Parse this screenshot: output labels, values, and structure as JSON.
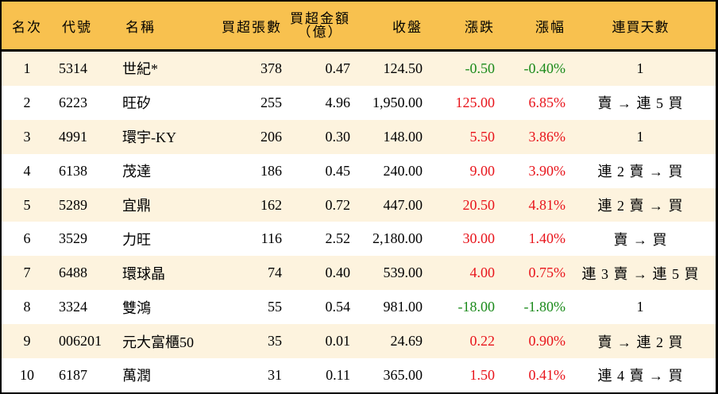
{
  "colors": {
    "header_bg": "#f8c14f",
    "row_odd_bg": "#fdf3de",
    "row_even_bg": "#ffffff",
    "up": "#e8141b",
    "down": "#1a8a1a",
    "border": "#000000"
  },
  "header": {
    "rank": "名次",
    "code": "代號",
    "name": "名稱",
    "net_buy_lots": "買超張數",
    "net_buy_amount_line1": "買超金額",
    "net_buy_amount_line2": "（億）",
    "close": "收盤",
    "change": "漲跌",
    "change_pct": "漲幅",
    "consecutive_days": "連買天數"
  },
  "rows": [
    {
      "rank": "1",
      "code": "5314",
      "name": "世紀*",
      "net_buy_lots": "378",
      "net_buy_amount": "0.47",
      "close": "124.50",
      "change": "-0.50",
      "change_pct": "-0.40%",
      "direction": "down",
      "consecutive_days": "1"
    },
    {
      "rank": "2",
      "code": "6223",
      "name": "旺矽",
      "net_buy_lots": "255",
      "net_buy_amount": "4.96",
      "close": "1,950.00",
      "change": "125.00",
      "change_pct": "6.85%",
      "direction": "up",
      "consecutive_days": "賣 → 連 5 買"
    },
    {
      "rank": "3",
      "code": "4991",
      "name": "環宇-KY",
      "net_buy_lots": "206",
      "net_buy_amount": "0.30",
      "close": "148.00",
      "change": "5.50",
      "change_pct": "3.86%",
      "direction": "up",
      "consecutive_days": "1"
    },
    {
      "rank": "4",
      "code": "6138",
      "name": "茂達",
      "net_buy_lots": "186",
      "net_buy_amount": "0.45",
      "close": "240.00",
      "change": "9.00",
      "change_pct": "3.90%",
      "direction": "up",
      "consecutive_days": "連 2 賣 → 買"
    },
    {
      "rank": "5",
      "code": "5289",
      "name": "宜鼎",
      "net_buy_lots": "162",
      "net_buy_amount": "0.72",
      "close": "447.00",
      "change": "20.50",
      "change_pct": "4.81%",
      "direction": "up",
      "consecutive_days": "連 2 賣 → 買"
    },
    {
      "rank": "6",
      "code": "3529",
      "name": "力旺",
      "net_buy_lots": "116",
      "net_buy_amount": "2.52",
      "close": "2,180.00",
      "change": "30.00",
      "change_pct": "1.40%",
      "direction": "up",
      "consecutive_days": "賣 → 買"
    },
    {
      "rank": "7",
      "code": "6488",
      "name": "環球晶",
      "net_buy_lots": "74",
      "net_buy_amount": "0.40",
      "close": "539.00",
      "change": "4.00",
      "change_pct": "0.75%",
      "direction": "up",
      "consecutive_days": "連 3 賣 → 連 5 買"
    },
    {
      "rank": "8",
      "code": "3324",
      "name": "雙鴻",
      "net_buy_lots": "55",
      "net_buy_amount": "0.54",
      "close": "981.00",
      "change": "-18.00",
      "change_pct": "-1.80%",
      "direction": "down",
      "consecutive_days": "1"
    },
    {
      "rank": "9",
      "code": "006201",
      "name": "元大富櫃50",
      "net_buy_lots": "35",
      "net_buy_amount": "0.01",
      "close": "24.69",
      "change": "0.22",
      "change_pct": "0.90%",
      "direction": "up",
      "consecutive_days": "賣 → 連 2 買"
    },
    {
      "rank": "10",
      "code": "6187",
      "name": "萬潤",
      "net_buy_lots": "31",
      "net_buy_amount": "0.11",
      "close": "365.00",
      "change": "1.50",
      "change_pct": "0.41%",
      "direction": "up",
      "consecutive_days": "連 4 賣 → 買"
    }
  ]
}
